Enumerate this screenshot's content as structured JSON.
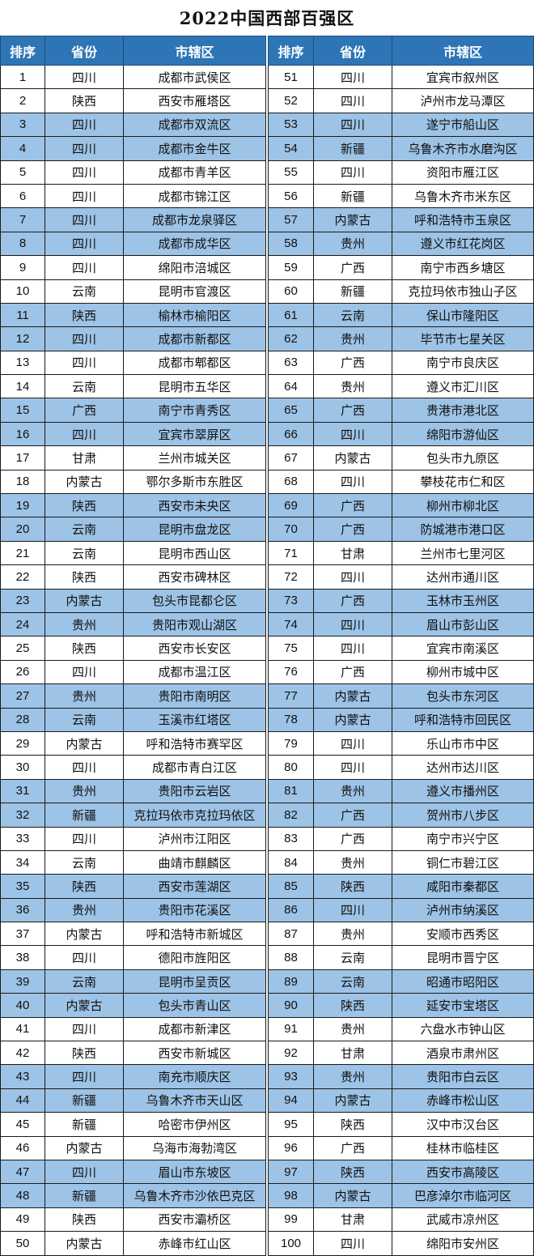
{
  "title": "2022中国西部百强区",
  "headers": [
    "排序",
    "省份",
    "市辖区"
  ],
  "colors": {
    "header_bg": "#2e75b6",
    "band_bg": "#9dc3e6",
    "row_bg": "#ffffff"
  },
  "left_rows": [
    [
      "1",
      "四川",
      "成都市武侯区"
    ],
    [
      "2",
      "陕西",
      "西安市雁塔区"
    ],
    [
      "3",
      "四川",
      "成都市双流区"
    ],
    [
      "4",
      "四川",
      "成都市金牛区"
    ],
    [
      "5",
      "四川",
      "成都市青羊区"
    ],
    [
      "6",
      "四川",
      "成都市锦江区"
    ],
    [
      "7",
      "四川",
      "成都市龙泉驿区"
    ],
    [
      "8",
      "四川",
      "成都市成华区"
    ],
    [
      "9",
      "四川",
      "绵阳市涪城区"
    ],
    [
      "10",
      "云南",
      "昆明市官渡区"
    ],
    [
      "11",
      "陕西",
      "榆林市榆阳区"
    ],
    [
      "12",
      "四川",
      "成都市新都区"
    ],
    [
      "13",
      "四川",
      "成都市郫都区"
    ],
    [
      "14",
      "云南",
      "昆明市五华区"
    ],
    [
      "15",
      "广西",
      "南宁市青秀区"
    ],
    [
      "16",
      "四川",
      "宜宾市翠屏区"
    ],
    [
      "17",
      "甘肃",
      "兰州市城关区"
    ],
    [
      "18",
      "内蒙古",
      "鄂尔多斯市东胜区"
    ],
    [
      "19",
      "陕西",
      "西安市未央区"
    ],
    [
      "20",
      "云南",
      "昆明市盘龙区"
    ],
    [
      "21",
      "云南",
      "昆明市西山区"
    ],
    [
      "22",
      "陕西",
      "西安市碑林区"
    ],
    [
      "23",
      "内蒙古",
      "包头市昆都仑区"
    ],
    [
      "24",
      "贵州",
      "贵阳市观山湖区"
    ],
    [
      "25",
      "陕西",
      "西安市长安区"
    ],
    [
      "26",
      "四川",
      "成都市温江区"
    ],
    [
      "27",
      "贵州",
      "贵阳市南明区"
    ],
    [
      "28",
      "云南",
      "玉溪市红塔区"
    ],
    [
      "29",
      "内蒙古",
      "呼和浩特市赛罕区"
    ],
    [
      "30",
      "四川",
      "成都市青白江区"
    ],
    [
      "31",
      "贵州",
      "贵阳市云岩区"
    ],
    [
      "32",
      "新疆",
      "克拉玛依市克拉玛依区"
    ],
    [
      "33",
      "四川",
      "泸州市江阳区"
    ],
    [
      "34",
      "云南",
      "曲靖市麒麟区"
    ],
    [
      "35",
      "陕西",
      "西安市莲湖区"
    ],
    [
      "36",
      "贵州",
      "贵阳市花溪区"
    ],
    [
      "37",
      "内蒙古",
      "呼和浩特市新城区"
    ],
    [
      "38",
      "四川",
      "德阳市旌阳区"
    ],
    [
      "39",
      "云南",
      "昆明市呈贡区"
    ],
    [
      "40",
      "内蒙古",
      "包头市青山区"
    ],
    [
      "41",
      "四川",
      "成都市新津区"
    ],
    [
      "42",
      "陕西",
      "西安市新城区"
    ],
    [
      "43",
      "四川",
      "南充市顺庆区"
    ],
    [
      "44",
      "新疆",
      "乌鲁木齐市天山区"
    ],
    [
      "45",
      "新疆",
      "哈密市伊州区"
    ],
    [
      "46",
      "内蒙古",
      "乌海市海勃湾区"
    ],
    [
      "47",
      "四川",
      "眉山市东坡区"
    ],
    [
      "48",
      "新疆",
      "乌鲁木齐市沙依巴克区"
    ],
    [
      "49",
      "陕西",
      "西安市灞桥区"
    ],
    [
      "50",
      "内蒙古",
      "赤峰市红山区"
    ]
  ],
  "right_rows": [
    [
      "51",
      "四川",
      "宜宾市叙州区"
    ],
    [
      "52",
      "四川",
      "泸州市龙马潭区"
    ],
    [
      "53",
      "四川",
      "遂宁市船山区"
    ],
    [
      "54",
      "新疆",
      "乌鲁木齐市水磨沟区"
    ],
    [
      "55",
      "四川",
      "资阳市雁江区"
    ],
    [
      "56",
      "新疆",
      "乌鲁木齐市米东区"
    ],
    [
      "57",
      "内蒙古",
      "呼和浩特市玉泉区"
    ],
    [
      "58",
      "贵州",
      "遵义市红花岗区"
    ],
    [
      "59",
      "广西",
      "南宁市西乡塘区"
    ],
    [
      "60",
      "新疆",
      "克拉玛依市独山子区"
    ],
    [
      "61",
      "云南",
      "保山市隆阳区"
    ],
    [
      "62",
      "贵州",
      "毕节市七星关区"
    ],
    [
      "63",
      "广西",
      "南宁市良庆区"
    ],
    [
      "64",
      "贵州",
      "遵义市汇川区"
    ],
    [
      "65",
      "广西",
      "贵港市港北区"
    ],
    [
      "66",
      "四川",
      "绵阳市游仙区"
    ],
    [
      "67",
      "内蒙古",
      "包头市九原区"
    ],
    [
      "68",
      "四川",
      "攀枝花市仁和区"
    ],
    [
      "69",
      "广西",
      "柳州市柳北区"
    ],
    [
      "70",
      "广西",
      "防城港市港口区"
    ],
    [
      "71",
      "甘肃",
      "兰州市七里河区"
    ],
    [
      "72",
      "四川",
      "达州市通川区"
    ],
    [
      "73",
      "广西",
      "玉林市玉州区"
    ],
    [
      "74",
      "四川",
      "眉山市彭山区"
    ],
    [
      "75",
      "四川",
      "宜宾市南溪区"
    ],
    [
      "76",
      "广西",
      "柳州市城中区"
    ],
    [
      "77",
      "内蒙古",
      "包头市东河区"
    ],
    [
      "78",
      "内蒙古",
      "呼和浩特市回民区"
    ],
    [
      "79",
      "四川",
      "乐山市市中区"
    ],
    [
      "80",
      "四川",
      "达州市达川区"
    ],
    [
      "81",
      "贵州",
      "遵义市播州区"
    ],
    [
      "82",
      "广西",
      "贺州市八步区"
    ],
    [
      "83",
      "广西",
      "南宁市兴宁区"
    ],
    [
      "84",
      "贵州",
      "铜仁市碧江区"
    ],
    [
      "85",
      "陕西",
      "咸阳市秦都区"
    ],
    [
      "86",
      "四川",
      "泸州市纳溪区"
    ],
    [
      "87",
      "贵州",
      "安顺市西秀区"
    ],
    [
      "88",
      "云南",
      "昆明市晋宁区"
    ],
    [
      "89",
      "云南",
      "昭通市昭阳区"
    ],
    [
      "90",
      "陕西",
      "延安市宝塔区"
    ],
    [
      "91",
      "贵州",
      "六盘水市钟山区"
    ],
    [
      "92",
      "甘肃",
      "酒泉市肃州区"
    ],
    [
      "93",
      "贵州",
      "贵阳市白云区"
    ],
    [
      "94",
      "内蒙古",
      "赤峰市松山区"
    ],
    [
      "95",
      "陕西",
      "汉中市汉台区"
    ],
    [
      "96",
      "广西",
      "桂林市临桂区"
    ],
    [
      "97",
      "陕西",
      "西安市高陵区"
    ],
    [
      "98",
      "内蒙古",
      "巴彦淖尔市临河区"
    ],
    [
      "99",
      "甘肃",
      "武威市凉州区"
    ],
    [
      "100",
      "四川",
      "绵阳市安州区"
    ]
  ]
}
